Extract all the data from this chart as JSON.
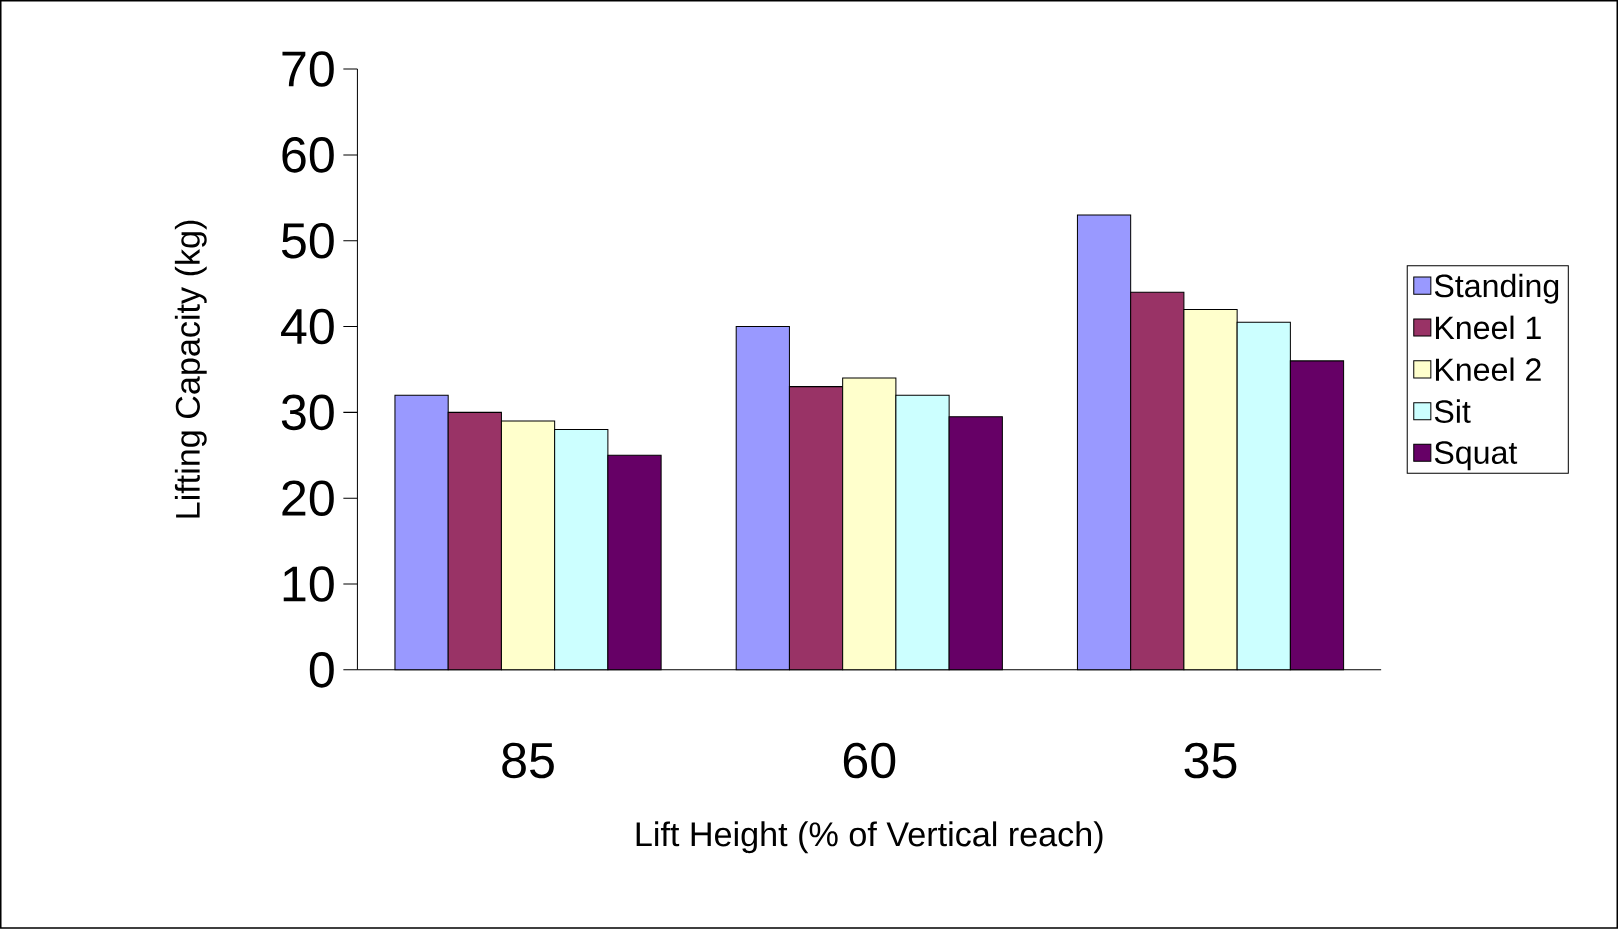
{
  "chart_data": {
    "type": "bar",
    "xlabel": "Lift Height (% of Vertical reach)",
    "ylabel": "Lifting Capacity (kg)",
    "categories": [
      "85",
      "60",
      "35"
    ],
    "series": [
      {
        "name": "Standing",
        "color": "#9999ff",
        "values": [
          32.0,
          40.0,
          53.0
        ]
      },
      {
        "name": "Kneel 1",
        "color": "#993366",
        "values": [
          30.0,
          33.0,
          44.0
        ]
      },
      {
        "name": "Kneel 2",
        "color": "#ffffcc",
        "values": [
          29.0,
          34.0,
          42.0
        ]
      },
      {
        "name": "Sit",
        "color": "#ccffff",
        "values": [
          28.0,
          32.0,
          40.5
        ]
      },
      {
        "name": "Squat",
        "color": "#660066",
        "values": [
          25.0,
          29.5,
          36.0
        ]
      }
    ],
    "ylim": [
      0,
      70
    ],
    "yticks": [
      0,
      10,
      20,
      30,
      40,
      50,
      60,
      70
    ],
    "grid": false,
    "legend": "right"
  }
}
